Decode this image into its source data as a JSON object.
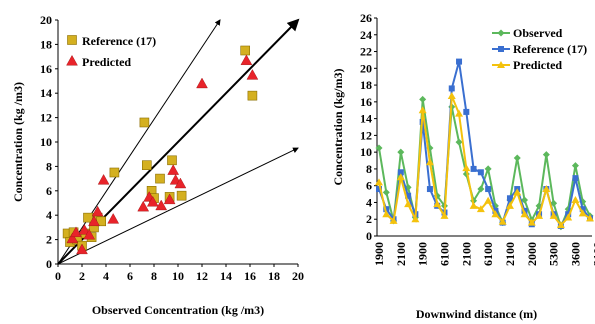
{
  "chart_data": [
    {
      "type": "scatter",
      "xlabel": "Observed Concentration (kg /m3)",
      "ylabel": "Concentration (kg /m3)",
      "xlim": [
        0,
        20
      ],
      "ylim": [
        0,
        20
      ],
      "xticks": [
        "0",
        "2",
        "4",
        "6",
        "8",
        "10",
        "12",
        "14",
        "16",
        "18",
        "20"
      ],
      "yticks": [
        "0",
        "2",
        "4",
        "6",
        "8",
        "10",
        "12",
        "14",
        "16",
        "18",
        "20"
      ],
      "legend_position": "top-left",
      "reference_lines": [
        {
          "x": [
            0,
            20
          ],
          "y": [
            0,
            20
          ]
        },
        {
          "x": [
            0,
            13.5
          ],
          "y": [
            0,
            20
          ]
        },
        {
          "x": [
            0,
            20
          ],
          "y": [
            0,
            9.5
          ]
        }
      ],
      "series": [
        {
          "name": "Reference (17)",
          "marker": "square",
          "color": "#d4b020",
          "points": [
            [
              0.8,
              2.5
            ],
            [
              1.0,
              1.8
            ],
            [
              1.3,
              2.6
            ],
            [
              1.6,
              2.0
            ],
            [
              2.0,
              1.5
            ],
            [
              2.3,
              2.5
            ],
            [
              2.5,
              3.8
            ],
            [
              2.8,
              2.2
            ],
            [
              3.0,
              3.0
            ],
            [
              3.3,
              3.8
            ],
            [
              3.6,
              3.5
            ],
            [
              4.7,
              7.5
            ],
            [
              7.2,
              11.6
            ],
            [
              7.4,
              8.1
            ],
            [
              7.8,
              6.0
            ],
            [
              8.0,
              5.4
            ],
            [
              8.5,
              7.0
            ],
            [
              9.3,
              5.5
            ],
            [
              9.5,
              8.5
            ],
            [
              10.3,
              5.6
            ],
            [
              15.6,
              17.5
            ],
            [
              16.2,
              13.8
            ]
          ]
        },
        {
          "name": "Predicted",
          "marker": "triangle",
          "color": "#e8232a",
          "points": [
            [
              1.2,
              2.0
            ],
            [
              1.5,
              2.5
            ],
            [
              2.0,
              1.1
            ],
            [
              2.2,
              2.7
            ],
            [
              2.6,
              2.3
            ],
            [
              3.0,
              3.4
            ],
            [
              3.3,
              4.2
            ],
            [
              3.8,
              6.8
            ],
            [
              4.6,
              3.6
            ],
            [
              7.1,
              4.6
            ],
            [
              7.6,
              5.4
            ],
            [
              7.9,
              5.0
            ],
            [
              8.6,
              4.7
            ],
            [
              9.3,
              5.2
            ],
            [
              9.6,
              7.6
            ],
            [
              9.8,
              6.8
            ],
            [
              10.2,
              6.5
            ],
            [
              12.0,
              14.7
            ],
            [
              15.7,
              16.6
            ],
            [
              16.2,
              15.4
            ]
          ]
        }
      ]
    },
    {
      "type": "line",
      "xlabel": "Downwind distance (m)",
      "ylabel": "Concentration (kg/m3)",
      "ylim": [
        0,
        26
      ],
      "yticks": [
        "0",
        "2",
        "4",
        "6",
        "8",
        "10",
        "12",
        "14",
        "16",
        "18",
        "20",
        "22",
        "24",
        "26"
      ],
      "xticks": [
        "1900",
        "2100",
        "1900",
        "6100",
        "2100",
        "6100",
        "2100",
        "2000",
        "5300",
        "3600",
        "2100"
      ],
      "legend_position": "top-right",
      "series": [
        {
          "name": "Observed",
          "marker": "diamond",
          "color": "#5cb85c",
          "values": [
            10.5,
            5.2,
            1.8,
            10.0,
            5.8,
            2.2,
            16.3,
            10.5,
            4.8,
            3.6,
            15.4,
            11.2,
            7.4,
            4.2,
            5.6,
            8.0,
            3.6,
            1.6,
            4.3,
            9.3,
            4.3,
            1.9,
            3.6,
            9.7,
            3.9,
            1.1,
            3.2,
            8.4,
            4.1,
            2.4
          ]
        },
        {
          "name": "Reference (17)",
          "marker": "square",
          "color": "#3a6fd0",
          "values": [
            5.6,
            3.2,
            2.0,
            7.6,
            4.8,
            2.6,
            13.6,
            5.6,
            3.6,
            2.8,
            17.6,
            20.8,
            14.8,
            8.0,
            7.6,
            5.6,
            3.0,
            1.6,
            4.5,
            5.6,
            3.0,
            1.4,
            2.6,
            5.6,
            2.6,
            1.2,
            2.6,
            6.9,
            3.2,
            2.1
          ]
        },
        {
          "name": "Predicted",
          "marker": "triangle",
          "color": "#f4c20d",
          "values": [
            6.4,
            2.6,
            1.8,
            7.0,
            3.8,
            2.0,
            15.0,
            8.8,
            3.8,
            2.4,
            16.7,
            14.6,
            8.1,
            3.6,
            3.2,
            4.2,
            2.6,
            1.7,
            3.6,
            5.2,
            2.6,
            1.6,
            2.4,
            5.6,
            2.4,
            1.3,
            2.2,
            4.3,
            2.7,
            2.1
          ]
        }
      ]
    }
  ]
}
